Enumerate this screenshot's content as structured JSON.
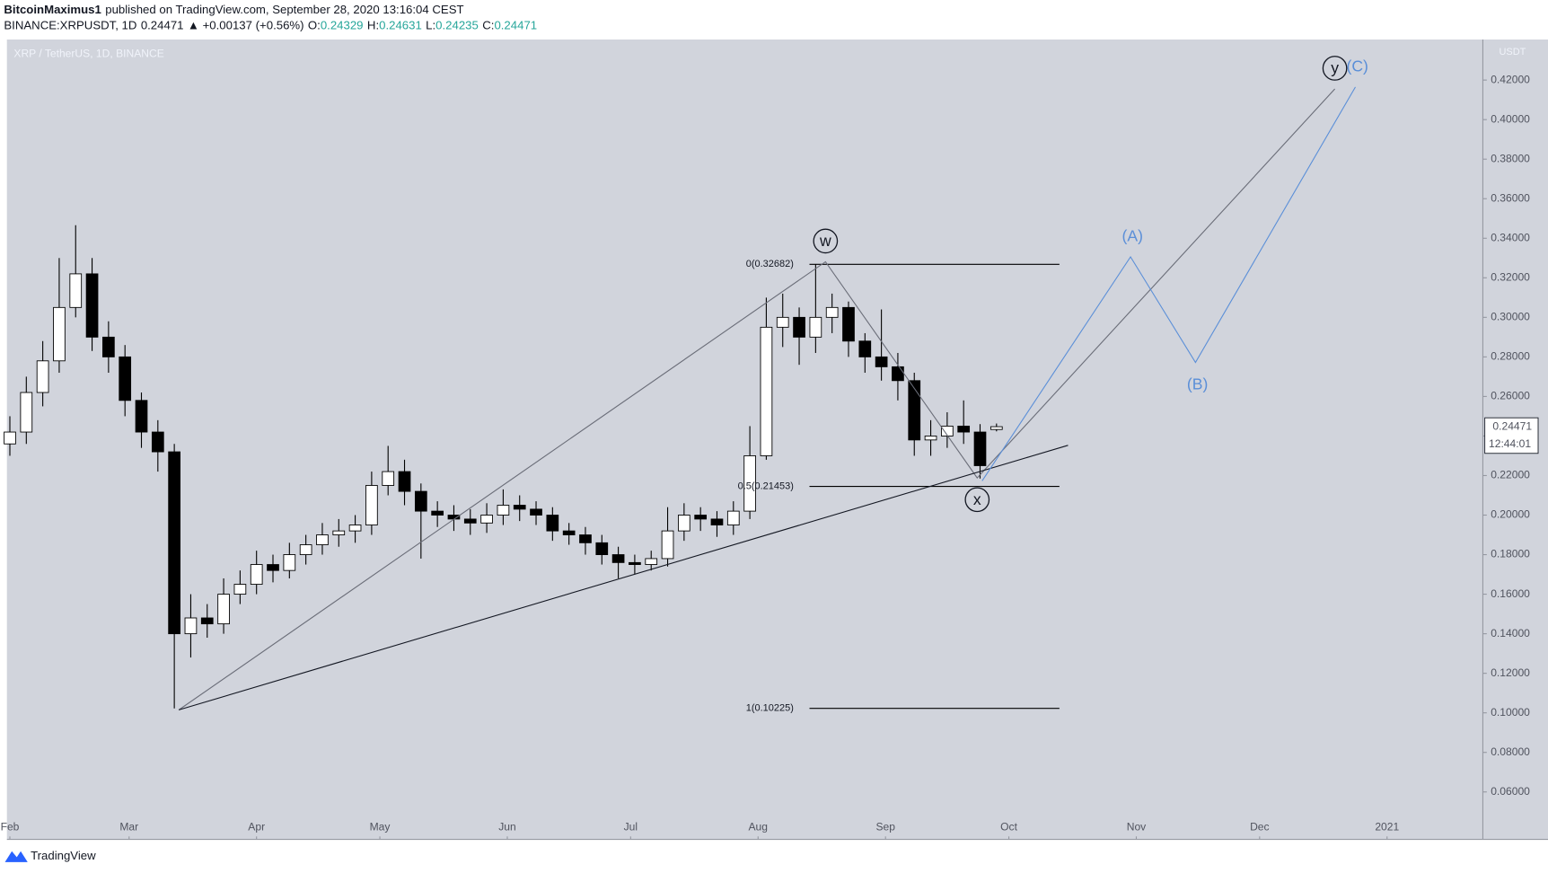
{
  "header": {
    "author": "BitcoinMaximus1",
    "published": "published on TradingView.com, September 28, 2020 13:16:04 CEST",
    "legend": [
      {
        "text": "BINANCE:XRPUSDT, 1D",
        "color": "#131722"
      },
      {
        "text": "0.24471",
        "color": "#131722"
      },
      {
        "text": "▲ +0.00137 (+0.56%)",
        "color": "#131722"
      },
      {
        "text": "O:",
        "color": "#131722"
      },
      {
        "text": "0.24329",
        "color": "#26a69a"
      },
      {
        "text": "H:",
        "color": "#131722"
      },
      {
        "text": "0.24631",
        "color": "#26a69a"
      },
      {
        "text": "L:",
        "color": "#131722"
      },
      {
        "text": "0.24235",
        "color": "#26a69a"
      },
      {
        "text": "C:",
        "color": "#131722"
      },
      {
        "text": "0.24471",
        "color": "#26a69a"
      }
    ]
  },
  "chart_data": {
    "type": "candlestick",
    "title": "XRP / TetherUS, 1D, BINANCE",
    "y_unit": "USDT",
    "background": "#d1d4dc",
    "grid": false,
    "xlim": [
      -0.72,
      358.3
    ],
    "xticks": [
      {
        "value": 0,
        "label": "Feb"
      },
      {
        "value": 29,
        "label": "Mar"
      },
      {
        "value": 60,
        "label": "Apr"
      },
      {
        "value": 90,
        "label": "May"
      },
      {
        "value": 121,
        "label": "Jun"
      },
      {
        "value": 151,
        "label": "Jul"
      },
      {
        "value": 182,
        "label": "Aug"
      },
      {
        "value": 213,
        "label": "Sep"
      },
      {
        "value": 243,
        "label": "Oct"
      },
      {
        "value": 274,
        "label": "Nov"
      },
      {
        "value": 304,
        "label": "Dec"
      },
      {
        "value": 335,
        "label": "2021"
      }
    ],
    "ylim": [
      0.036,
      0.4405
    ],
    "yticks": [
      {
        "value": 0.06,
        "label": "0.06000"
      },
      {
        "value": 0.08,
        "label": "0.08000"
      },
      {
        "value": 0.1,
        "label": "0.10000"
      },
      {
        "value": 0.12,
        "label": "0.12000"
      },
      {
        "value": 0.14,
        "label": "0.14000"
      },
      {
        "value": 0.16,
        "label": "0.16000"
      },
      {
        "value": 0.18,
        "label": "0.18000"
      },
      {
        "value": 0.2,
        "label": "0.20000"
      },
      {
        "value": 0.22,
        "label": "0.22000"
      },
      {
        "value": 0.24,
        "label": "0.24000"
      },
      {
        "value": 0.26,
        "label": "0.26000"
      },
      {
        "value": 0.28,
        "label": "0.28000"
      },
      {
        "value": 0.3,
        "label": "0.30000"
      },
      {
        "value": 0.32,
        "label": "0.32000"
      },
      {
        "value": 0.34,
        "label": "0.34000"
      },
      {
        "value": 0.36,
        "label": "0.36000"
      },
      {
        "value": 0.38,
        "label": "0.38000"
      },
      {
        "value": 0.4,
        "label": "0.40000"
      },
      {
        "value": 0.42,
        "label": "0.42000"
      }
    ],
    "up_color": "#ffffff",
    "down_color": "#000000",
    "wick_color": "#000000",
    "candles": {
      "x": [
        0,
        4,
        8,
        12,
        16,
        20,
        24,
        28,
        32,
        36,
        40,
        44,
        48,
        52,
        56,
        60,
        64,
        68,
        72,
        76,
        80,
        84,
        88,
        92,
        96,
        100,
        104,
        108,
        112,
        116,
        120,
        124,
        128,
        132,
        136,
        140,
        144,
        148,
        152,
        156,
        160,
        164,
        168,
        172,
        176,
        180,
        184,
        188,
        192,
        196,
        200,
        204,
        208,
        212,
        216,
        220,
        224,
        228,
        232,
        236,
        240
      ],
      "open": [
        0.236,
        0.242,
        0.262,
        0.278,
        0.305,
        0.322,
        0.29,
        0.28,
        0.258,
        0.242,
        0.232,
        0.14,
        0.148,
        0.145,
        0.16,
        0.165,
        0.175,
        0.172,
        0.18,
        0.185,
        0.19,
        0.192,
        0.195,
        0.215,
        0.222,
        0.212,
        0.202,
        0.2,
        0.198,
        0.196,
        0.2,
        0.205,
        0.203,
        0.2,
        0.192,
        0.19,
        0.186,
        0.18,
        0.176,
        0.175,
        0.178,
        0.192,
        0.2,
        0.198,
        0.195,
        0.202,
        0.23,
        0.295,
        0.3,
        0.29,
        0.3,
        0.305,
        0.288,
        0.28,
        0.275,
        0.268,
        0.238,
        0.24,
        0.245,
        0.242,
        0.24329
      ],
      "high": [
        0.25,
        0.27,
        0.288,
        0.33,
        0.3466,
        0.33,
        0.298,
        0.286,
        0.262,
        0.248,
        0.236,
        0.16,
        0.155,
        0.168,
        0.172,
        0.182,
        0.18,
        0.186,
        0.19,
        0.196,
        0.198,
        0.2,
        0.222,
        0.235,
        0.228,
        0.216,
        0.207,
        0.205,
        0.203,
        0.206,
        0.213,
        0.21,
        0.207,
        0.204,
        0.196,
        0.194,
        0.19,
        0.184,
        0.18,
        0.182,
        0.204,
        0.206,
        0.204,
        0.202,
        0.207,
        0.245,
        0.31,
        0.312,
        0.305,
        0.3268,
        0.312,
        0.308,
        0.292,
        0.304,
        0.282,
        0.272,
        0.248,
        0.252,
        0.258,
        0.246,
        0.24631
      ],
      "low": [
        0.23,
        0.236,
        0.255,
        0.272,
        0.3,
        0.283,
        0.272,
        0.25,
        0.234,
        0.222,
        0.10225,
        0.128,
        0.138,
        0.14,
        0.155,
        0.16,
        0.166,
        0.168,
        0.175,
        0.18,
        0.184,
        0.186,
        0.19,
        0.21,
        0.205,
        0.178,
        0.194,
        0.192,
        0.19,
        0.191,
        0.195,
        0.197,
        0.195,
        0.187,
        0.185,
        0.18,
        0.175,
        0.168,
        0.17,
        0.172,
        0.174,
        0.187,
        0.192,
        0.189,
        0.19,
        0.198,
        0.228,
        0.285,
        0.276,
        0.282,
        0.292,
        0.28,
        0.272,
        0.268,
        0.258,
        0.23,
        0.23,
        0.234,
        0.236,
        0.2185,
        0.24235
      ],
      "close": [
        0.242,
        0.262,
        0.278,
        0.305,
        0.322,
        0.29,
        0.28,
        0.258,
        0.242,
        0.232,
        0.14,
        0.148,
        0.145,
        0.16,
        0.165,
        0.175,
        0.172,
        0.18,
        0.185,
        0.19,
        0.192,
        0.195,
        0.215,
        0.222,
        0.212,
        0.202,
        0.2,
        0.198,
        0.196,
        0.2,
        0.205,
        0.203,
        0.2,
        0.192,
        0.19,
        0.186,
        0.18,
        0.176,
        0.175,
        0.178,
        0.192,
        0.2,
        0.198,
        0.195,
        0.202,
        0.23,
        0.295,
        0.3,
        0.29,
        0.3,
        0.305,
        0.288,
        0.28,
        0.275,
        0.268,
        0.238,
        0.24,
        0.245,
        0.242,
        0.225,
        0.24471
      ]
    },
    "last_price": 0.24471,
    "countdown": "12:44:01",
    "fib": {
      "x": [
        194.5,
        255.3
      ],
      "color": "#000000",
      "levels": [
        {
          "value": 0.32682,
          "label": "0(0.32682)"
        },
        {
          "value": 0.21453,
          "label": "0.5(0.21453)"
        },
        {
          "value": 0.10225,
          "label": "1(0.10225)"
        }
      ]
    },
    "drawings": [
      {
        "color": "#6a6d78",
        "circled": true,
        "x": [
          41.1,
          198.4,
          235.3,
          322.3
        ],
        "y": [
          0.1015,
          0.3281,
          0.2188,
          0.4155
        ],
        "labels": [
          null,
          "w",
          "x",
          "y"
        ]
      },
      {
        "color": "#131722",
        "circled": false,
        "x": [
          41.1,
          257.4
        ],
        "y": [
          0.1015,
          0.2353
        ],
        "labels": [
          null,
          null
        ]
      },
      {
        "color": "#5b8fd8",
        "circled": false,
        "x": [
          236.5,
          272.6,
          288.4,
          327.3
        ],
        "y": [
          0.2173,
          0.3306,
          0.2772,
          0.4165
        ],
        "labels": [
          null,
          "(A)",
          "(B)",
          "(C)"
        ]
      }
    ]
  },
  "footer": {
    "brand": "TradingView"
  }
}
